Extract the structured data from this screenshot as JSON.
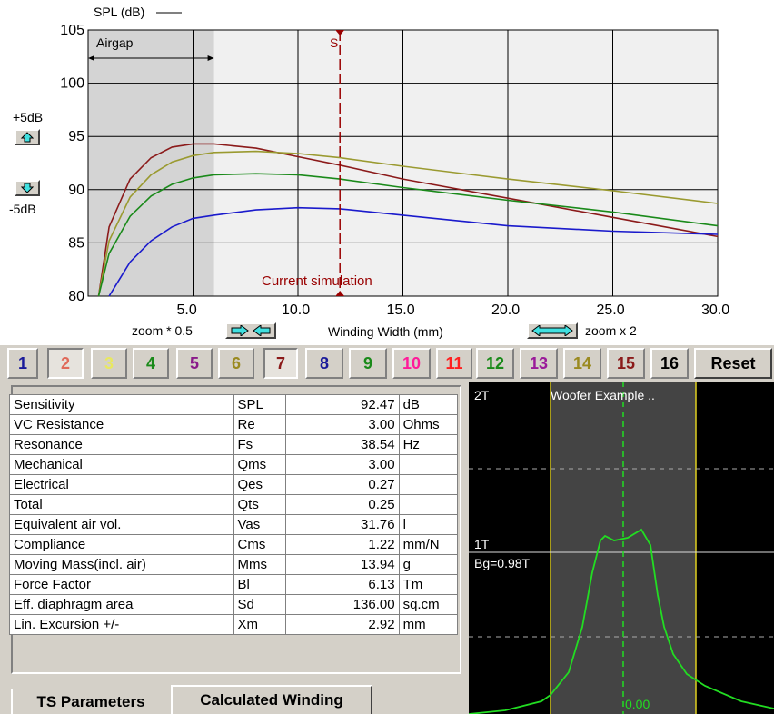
{
  "spl_chart": {
    "y_title": "SPL (dB)",
    "y_ticks": [
      "105",
      "100",
      "95",
      "90",
      "85",
      "80"
    ],
    "x_ticks": [
      "5.0",
      "10.0",
      "15.0",
      "20.0",
      "25.0",
      "30.0"
    ],
    "x_label": "Winding Width (mm)",
    "airgap_label": "Airgap",
    "marker_label": "S",
    "current_label": "Current simulation",
    "plus_label": "+5dB",
    "minus_label": "-5dB",
    "zoom_out_label": "zoom * 0.5",
    "zoom_in_label": "zoom x 2",
    "colors": {
      "background": "#f0f0f0",
      "airgap_shade": "#d4d4d4",
      "marker": "#990000"
    }
  },
  "chart_data": {
    "type": "line",
    "xlabel": "Winding Width (mm)",
    "ylabel": "SPL (dB)",
    "xlim": [
      0,
      30
    ],
    "ylim": [
      80,
      105
    ],
    "airgap_x": [
      0,
      6
    ],
    "current_x": 12,
    "series": [
      {
        "color": "#8b1a1a",
        "x": [
          0.5,
          1,
          2,
          3,
          4,
          5,
          6,
          8,
          10,
          12,
          15,
          20,
          25,
          30
        ],
        "y": [
          80,
          86.5,
          91,
          93,
          94,
          94.3,
          94.3,
          93.9,
          93.1,
          92.3,
          91,
          89.2,
          87.4,
          85.6
        ]
      },
      {
        "color": "#9a9a30",
        "x": [
          0.5,
          1,
          2,
          3,
          4,
          5,
          6,
          8,
          10,
          12,
          15,
          20,
          25,
          30
        ],
        "y": [
          80,
          85.2,
          89.3,
          91.4,
          92.6,
          93.2,
          93.5,
          93.6,
          93.4,
          93,
          92.2,
          91,
          89.9,
          88.7
        ]
      },
      {
        "color": "#1a8a1a",
        "x": [
          0.5,
          1,
          2,
          3,
          4,
          5,
          6,
          8,
          10,
          12,
          15,
          20,
          25,
          30
        ],
        "y": [
          80,
          84,
          87.5,
          89.4,
          90.5,
          91.1,
          91.4,
          91.5,
          91.4,
          91,
          90.2,
          89,
          87.9,
          86.6
        ]
      },
      {
        "color": "#1a1acc",
        "x": [
          1,
          2,
          3,
          4,
          5,
          6,
          8,
          10,
          12,
          15,
          20,
          25,
          30
        ],
        "y": [
          80,
          83.2,
          85.2,
          86.5,
          87.3,
          87.6,
          88.1,
          88.3,
          88.2,
          87.6,
          86.6,
          86.1,
          85.8
        ]
      }
    ]
  },
  "tabs": [
    {
      "label": "1",
      "color": "#1a1a9a"
    },
    {
      "label": "2",
      "color": "#e06a5a"
    },
    {
      "label": "3",
      "color": "#e8e860"
    },
    {
      "label": "4",
      "color": "#1a8a1a"
    },
    {
      "label": "5",
      "color": "#8a1a8a"
    },
    {
      "label": "6",
      "color": "#9a8a20"
    },
    {
      "label": "7",
      "color": "#8b1a1a"
    },
    {
      "label": "8",
      "color": "#1a1a9a"
    },
    {
      "label": "9",
      "color": "#1a8a1a"
    },
    {
      "label": "10",
      "color": "#ff1a9a"
    },
    {
      "label": "11",
      "color": "#ff2020"
    },
    {
      "label": "12",
      "color": "#1a8a1a"
    },
    {
      "label": "13",
      "color": "#9a1a9a"
    },
    {
      "label": "14",
      "color": "#9a8a20"
    },
    {
      "label": "15",
      "color": "#8b1a1a"
    },
    {
      "label": "16",
      "color": "#000000"
    }
  ],
  "reset_label": "Reset",
  "params": [
    {
      "name": "Sensitivity",
      "sym": "SPL",
      "value": "92.47",
      "unit": "dB"
    },
    {
      "name": "VC Resistance",
      "sym": "Re",
      "value": "3.00",
      "unit": "Ohms"
    },
    {
      "name": "Resonance",
      "sym": "Fs",
      "value": "38.54",
      "unit": "Hz"
    },
    {
      "name": "Mechanical",
      "sym": "Qms",
      "value": "3.00",
      "unit": ""
    },
    {
      "name": "Electrical",
      "sym": "Qes",
      "value": "0.27",
      "unit": ""
    },
    {
      "name": "Total",
      "sym": "Qts",
      "value": "0.25",
      "unit": ""
    },
    {
      "name": "Equivalent air vol.",
      "sym": "Vas",
      "value": "31.76",
      "unit": "l"
    },
    {
      "name": "Compliance",
      "sym": "Cms",
      "value": "1.22",
      "unit": "mm/N"
    },
    {
      "name": "Moving Mass(incl. air)",
      "sym": "Mms",
      "value": "13.94",
      "unit": "g"
    },
    {
      "name": "Force Factor",
      "sym": "Bl",
      "value": "6.13",
      "unit": "Tm"
    },
    {
      "name": "Eff. diaphragm area",
      "sym": "Sd",
      "value": "136.00",
      "unit": "sq.cm"
    },
    {
      "name": "Lin. Excursion +/-",
      "sym": "Xm",
      "value": "2.92",
      "unit": "mm"
    }
  ],
  "bottom_tabs": {
    "ts": "TS Parameters",
    "cw": "Calculated Winding"
  },
  "flux_plot": {
    "top_label": "2T",
    "mid_label": "1T",
    "bg_label": "Bg=0.98T",
    "title": "Woofer Example ..",
    "center_label": "0.00",
    "colors": {
      "curve": "#22dd22",
      "gap_lines": "#e0d020",
      "gap_fill": "#444444"
    }
  }
}
